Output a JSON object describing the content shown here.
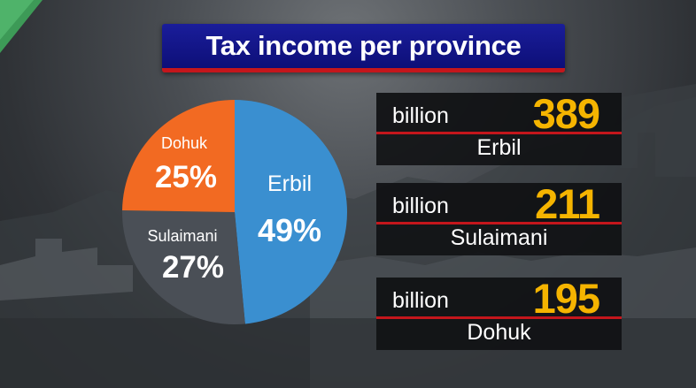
{
  "title": "Tax income per province",
  "colors": {
    "erbil": "#3a8fd0",
    "sulaimani": "#4a4f56",
    "dohuk": "#f26a22",
    "value": "#f5b400",
    "title_bg": "#13168a",
    "accent": "#c4161c"
  },
  "chart_data": {
    "type": "pie",
    "title": "Tax income per province",
    "slices": [
      {
        "name": "Erbil",
        "label": "49%",
        "value": 49,
        "color": "#3a8fd0"
      },
      {
        "name": "Sulaimani",
        "label": "27%",
        "value": 27,
        "color": "#4a4f56"
      },
      {
        "name": "Dohuk",
        "label": "25%",
        "value": 25,
        "color": "#f26a22"
      }
    ]
  },
  "cards": [
    {
      "unit": "billion",
      "value": "389",
      "name": "Erbil"
    },
    {
      "unit": "billion",
      "value": "211",
      "name": "Sulaimani"
    },
    {
      "unit": "billion",
      "value": "195",
      "name": "Dohuk"
    }
  ]
}
